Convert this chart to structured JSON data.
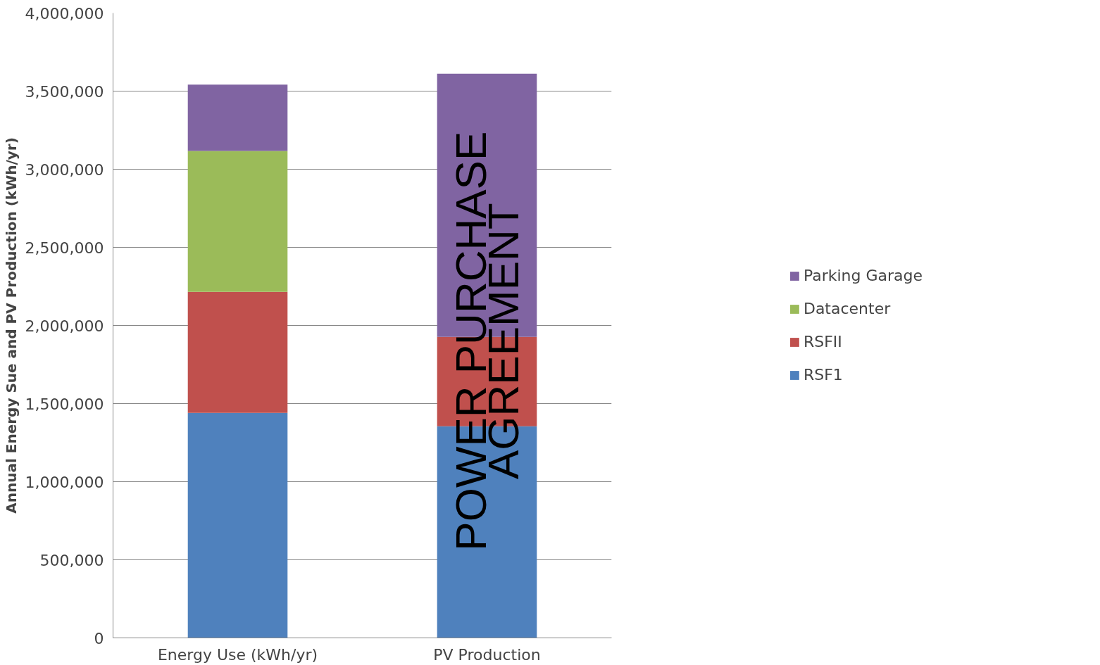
{
  "chart_data": {
    "type": "bar",
    "stacked": true,
    "ylabel": "Annual Energy Sue and PV Production (kWh/yr)",
    "categories": [
      "Energy Use (kWh/yr)",
      "PV Production"
    ],
    "series": [
      {
        "name": "RSF1",
        "color": "#4f81bd",
        "values": [
          1440000,
          1355000
        ]
      },
      {
        "name": "RSFII",
        "color": "#c0504d",
        "values": [
          775000,
          572000
        ]
      },
      {
        "name": "Datacenter",
        "color": "#9bbb59",
        "values": [
          902000,
          0
        ]
      },
      {
        "name": "Parking Garage",
        "color": "#8064a2",
        "values": [
          425000,
          1684000
        ]
      }
    ],
    "ylim": [
      0,
      4000000
    ],
    "yticks": [
      {
        "value": 0,
        "label": "0"
      },
      {
        "value": 500000,
        "label": "500,000"
      },
      {
        "value": 1000000,
        "label": "1,000,000"
      },
      {
        "value": 1500000,
        "label": "1,500,000"
      },
      {
        "value": 2000000,
        "label": "2,000,000"
      },
      {
        "value": 2500000,
        "label": "2,500,000"
      },
      {
        "value": 3000000,
        "label": "3,000,000"
      },
      {
        "value": 3500000,
        "label": "3,500,000"
      },
      {
        "value": 4000000,
        "label": "4,000,000"
      }
    ],
    "grid": "y",
    "legend": "right",
    "annotations": [
      "POWER PURCHASE AGREEMENT"
    ]
  }
}
